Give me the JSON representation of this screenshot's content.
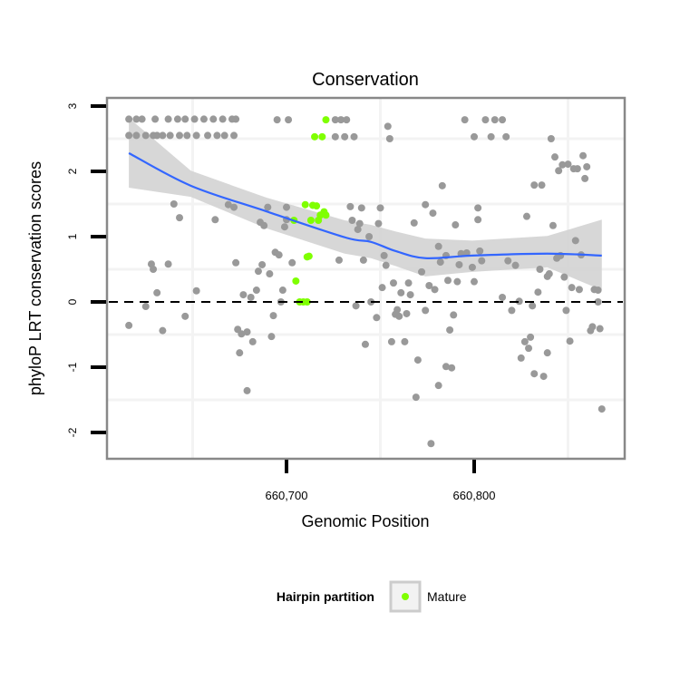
{
  "chart_data": {
    "type": "scatter",
    "title": "Conservation",
    "xlabel": "Genomic Position",
    "ylabel": "phyloP LRT conservation scores",
    "xlim": [
      660604,
      660880
    ],
    "ylim": [
      -2.4,
      3.1
    ],
    "x_ticks": [
      {
        "value": 660700,
        "label": "660,700"
      },
      {
        "value": 660800,
        "label": "660,800"
      }
    ],
    "y_ticks": [
      {
        "value": 3,
        "label": "3"
      },
      {
        "value": 2,
        "label": "2"
      },
      {
        "value": 1,
        "label": "1"
      },
      {
        "value": 0,
        "label": "0"
      },
      {
        "value": -1,
        "label": "-1"
      },
      {
        "value": -2,
        "label": "-2"
      }
    ],
    "grid": true,
    "reference_line": {
      "y": 0,
      "style": "dashed"
    },
    "colors": {
      "gray_points": "#999999",
      "mature": "#7fff00",
      "smooth": "#3366ff",
      "band": "#d3d3d3"
    },
    "legend": {
      "title": "Hairpin partition",
      "placement": "bottom",
      "entries": [
        {
          "label": "Mature",
          "color": "#7fff00"
        }
      ]
    },
    "series": [
      {
        "name": "",
        "color": "#999999",
        "points": [
          [
            660616,
            2.8
          ],
          [
            660620,
            2.8
          ],
          [
            660623,
            2.8
          ],
          [
            660630,
            2.8
          ],
          [
            660637,
            2.8
          ],
          [
            660642,
            2.8
          ],
          [
            660646,
            2.8
          ],
          [
            660651,
            2.8
          ],
          [
            660656,
            2.8
          ],
          [
            660661,
            2.8
          ],
          [
            660666,
            2.8
          ],
          [
            660671,
            2.8
          ],
          [
            660673,
            2.8
          ],
          [
            660695,
            2.79
          ],
          [
            660701,
            2.79
          ],
          [
            660726,
            2.79
          ],
          [
            660729,
            2.79
          ],
          [
            660732,
            2.79
          ],
          [
            660795,
            2.79
          ],
          [
            660806,
            2.79
          ],
          [
            660811,
            2.79
          ],
          [
            660815,
            2.79
          ],
          [
            660616,
            2.55
          ],
          [
            660620,
            2.55
          ],
          [
            660625,
            2.55
          ],
          [
            660629,
            2.55
          ],
          [
            660631,
            2.55
          ],
          [
            660634,
            2.55
          ],
          [
            660638,
            2.55
          ],
          [
            660643,
            2.55
          ],
          [
            660647,
            2.55
          ],
          [
            660652,
            2.55
          ],
          [
            660658,
            2.55
          ],
          [
            660663,
            2.55
          ],
          [
            660667,
            2.55
          ],
          [
            660672,
            2.55
          ],
          [
            660726,
            2.53
          ],
          [
            660731,
            2.53
          ],
          [
            660736,
            2.53
          ],
          [
            660800,
            2.53
          ],
          [
            660809,
            2.53
          ],
          [
            660817,
            2.53
          ],
          [
            660616,
            -0.36
          ],
          [
            660625,
            -0.07
          ],
          [
            660628,
            0.58
          ],
          [
            660629,
            0.5
          ],
          [
            660631,
            0.14
          ],
          [
            660634,
            -0.44
          ],
          [
            660637,
            0.58
          ],
          [
            660640,
            1.5
          ],
          [
            660643,
            1.29
          ],
          [
            660646,
            -0.22
          ],
          [
            660652,
            0.17
          ],
          [
            660662,
            1.26
          ],
          [
            660669,
            1.49
          ],
          [
            660672,
            1.45
          ],
          [
            660673,
            0.6
          ],
          [
            660674,
            -0.42
          ],
          [
            660676,
            -0.49
          ],
          [
            660675,
            -0.78
          ],
          [
            660677,
            0.11
          ],
          [
            660679,
            -0.46
          ],
          [
            660681,
            0.07
          ],
          [
            660679,
            -1.36
          ],
          [
            660682,
            -0.61
          ],
          [
            660684,
            0.18
          ],
          [
            660685,
            0.47
          ],
          [
            660687,
            0.57
          ],
          [
            660686,
            1.22
          ],
          [
            660688,
            1.17
          ],
          [
            660690,
            1.45
          ],
          [
            660691,
            0.43
          ],
          [
            660692,
            -0.53
          ],
          [
            660693,
            -0.21
          ],
          [
            660694,
            0.76
          ],
          [
            660696,
            0.72
          ],
          [
            660697,
            0.0
          ],
          [
            660698,
            0.18
          ],
          [
            660699,
            1.15
          ],
          [
            660700,
            1.26
          ],
          [
            660700,
            1.45
          ],
          [
            660703,
            0.6
          ],
          [
            660728,
            0.64
          ],
          [
            660734,
            1.46
          ],
          [
            660740,
            1.44
          ],
          [
            660750,
            1.44
          ],
          [
            660735,
            1.25
          ],
          [
            660739,
            1.2
          ],
          [
            660738,
            1.11
          ],
          [
            660744,
            1.0
          ],
          [
            660749,
            1.2
          ],
          [
            660741,
            0.64
          ],
          [
            660752,
            0.71
          ],
          [
            660753,
            0.56
          ],
          [
            660751,
            0.22
          ],
          [
            660757,
            0.29
          ],
          [
            660765,
            0.29
          ],
          [
            660761,
            0.14
          ],
          [
            660766,
            0.11
          ],
          [
            660745,
            0.0
          ],
          [
            660737,
            -0.06
          ],
          [
            660748,
            -0.24
          ],
          [
            660759,
            -0.12
          ],
          [
            660758,
            -0.19
          ],
          [
            660764,
            -0.18
          ],
          [
            660760,
            -0.22
          ],
          [
            660742,
            -0.65
          ],
          [
            660756,
            -0.61
          ],
          [
            660763,
            -0.61
          ],
          [
            660774,
            -0.13
          ],
          [
            660776,
            0.25
          ],
          [
            660779,
            0.19
          ],
          [
            660768,
            1.21
          ],
          [
            660774,
            1.49
          ],
          [
            660778,
            1.36
          ],
          [
            660772,
            0.46
          ],
          [
            660770,
            -0.89
          ],
          [
            660769,
            -1.46
          ],
          [
            660777,
            -2.17
          ],
          [
            660781,
            -1.28
          ],
          [
            660785,
            -0.99
          ],
          [
            660788,
            -1.01
          ],
          [
            660787,
            -0.43
          ],
          [
            660789,
            -0.2
          ],
          [
            660781,
            0.85
          ],
          [
            660785,
            0.71
          ],
          [
            660782,
            0.61
          ],
          [
            660786,
            0.33
          ],
          [
            660791,
            0.31
          ],
          [
            660792,
            0.57
          ],
          [
            660793,
            0.74
          ],
          [
            660796,
            0.75
          ],
          [
            660799,
            0.53
          ],
          [
            660800,
            0.31
          ],
          [
            660803,
            0.78
          ],
          [
            660804,
            0.63
          ],
          [
            660790,
            1.18
          ],
          [
            660802,
            1.44
          ],
          [
            660802,
            1.26
          ],
          [
            660783,
            1.78
          ],
          [
            660754,
            2.69
          ],
          [
            660755,
            2.5
          ],
          [
            660815,
            0.07
          ],
          [
            660820,
            -0.13
          ],
          [
            660824,
            0.01
          ],
          [
            660818,
            0.63
          ],
          [
            660822,
            0.56
          ],
          [
            660831,
            -0.06
          ],
          [
            660828,
            1.31
          ],
          [
            660825,
            -0.86
          ],
          [
            660827,
            -0.61
          ],
          [
            660829,
            -0.71
          ],
          [
            660830,
            -0.54
          ],
          [
            660832,
            -1.1
          ],
          [
            660837,
            -1.14
          ],
          [
            660839,
            -0.78
          ],
          [
            660832,
            1.79
          ],
          [
            660836,
            1.79
          ],
          [
            660841,
            2.5
          ],
          [
            660835,
            0.5
          ],
          [
            660839,
            0.39
          ],
          [
            660840,
            0.43
          ],
          [
            660834,
            0.15
          ],
          [
            660842,
            1.17
          ],
          [
            660843,
            2.22
          ],
          [
            660845,
            2.01
          ],
          [
            660847,
            2.1
          ],
          [
            660850,
            2.11
          ],
          [
            660853,
            2.04
          ],
          [
            660855,
            2.04
          ],
          [
            660858,
            2.24
          ],
          [
            660860,
            2.07
          ],
          [
            660859,
            1.89
          ],
          [
            660844,
            0.67
          ],
          [
            660846,
            0.71
          ],
          [
            660848,
            0.38
          ],
          [
            660849,
            -0.13
          ],
          [
            660851,
            -0.6
          ],
          [
            660852,
            0.22
          ],
          [
            660856,
            0.19
          ],
          [
            660854,
            0.94
          ],
          [
            660857,
            0.72
          ],
          [
            660862,
            -0.44
          ],
          [
            660863,
            -0.38
          ],
          [
            660867,
            -0.41
          ],
          [
            660864,
            0.19
          ],
          [
            660866,
            0.18
          ],
          [
            660866,
            0.0
          ],
          [
            660868,
            -1.64
          ]
        ]
      },
      {
        "name": "Mature",
        "color": "#7fff00",
        "points": [
          [
            660705,
            0.32
          ],
          [
            660707,
            0.0
          ],
          [
            660709,
            0.0
          ],
          [
            660711,
            0.0
          ],
          [
            660711,
            0.69
          ],
          [
            660712,
            0.7
          ],
          [
            660704,
            1.25
          ],
          [
            660710,
            1.49
          ],
          [
            660714,
            1.48
          ],
          [
            660716,
            1.47
          ],
          [
            660713,
            1.25
          ],
          [
            660717,
            1.25
          ],
          [
            660720,
            1.38
          ],
          [
            660718,
            1.33
          ],
          [
            660721,
            1.33
          ],
          [
            660715,
            2.53
          ],
          [
            660719,
            2.53
          ],
          [
            660721,
            2.79
          ]
        ]
      }
    ],
    "smooth": {
      "method": "loess",
      "x": [
        660616,
        660649,
        660689,
        660731,
        660745,
        660758,
        660774,
        660799,
        660839,
        660868
      ],
      "y": [
        2.28,
        1.78,
        1.39,
        0.99,
        0.92,
        0.78,
        0.67,
        0.71,
        0.74,
        0.71
      ],
      "upper": [
        2.82,
        2.01,
        1.6,
        1.25,
        1.18,
        1.08,
        0.97,
        0.94,
        1.01,
        1.26
      ],
      "lower": [
        1.75,
        1.61,
        1.13,
        0.74,
        0.67,
        0.55,
        0.39,
        0.46,
        0.53,
        0.18
      ]
    }
  }
}
